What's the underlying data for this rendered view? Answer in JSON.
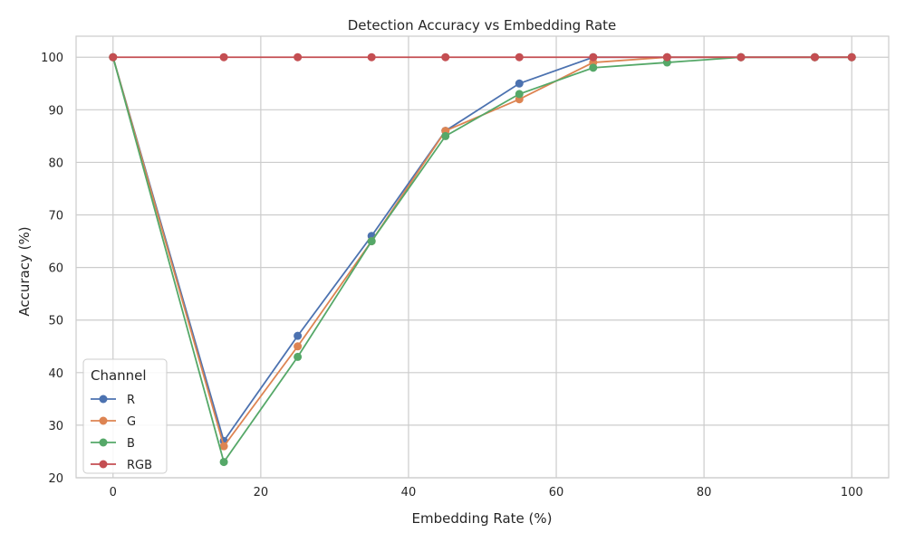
{
  "chart_data": {
    "type": "line",
    "title": "Detection Accuracy vs Embedding Rate",
    "xlabel": "Embedding Rate (%)",
    "ylabel": "Accuracy (%)",
    "xlim": [
      -5,
      105
    ],
    "ylim": [
      20,
      104
    ],
    "xticks": [
      0,
      20,
      40,
      60,
      80,
      100
    ],
    "yticks": [
      20,
      30,
      40,
      50,
      60,
      70,
      80,
      90,
      100
    ],
    "grid": true,
    "legend": {
      "title": "Channel",
      "placement": "lower-left"
    },
    "x": [
      0,
      15,
      25,
      35,
      45,
      55,
      65,
      75,
      85,
      95,
      100
    ],
    "series": [
      {
        "name": "R",
        "color": "#4c72b0",
        "values": [
          100,
          27,
          47,
          66,
          86,
          95,
          100,
          100,
          100,
          100,
          100
        ]
      },
      {
        "name": "G",
        "color": "#dd8452",
        "values": [
          100,
          26,
          45,
          65,
          86,
          92,
          99,
          100,
          100,
          100,
          100
        ]
      },
      {
        "name": "B",
        "color": "#55a868",
        "values": [
          100,
          23,
          43,
          65,
          85,
          93,
          98,
          99,
          100,
          100,
          100
        ]
      },
      {
        "name": "RGB",
        "color": "#c44e52",
        "values": [
          100,
          100,
          100,
          100,
          100,
          100,
          100,
          100,
          100,
          100,
          100
        ]
      }
    ]
  }
}
